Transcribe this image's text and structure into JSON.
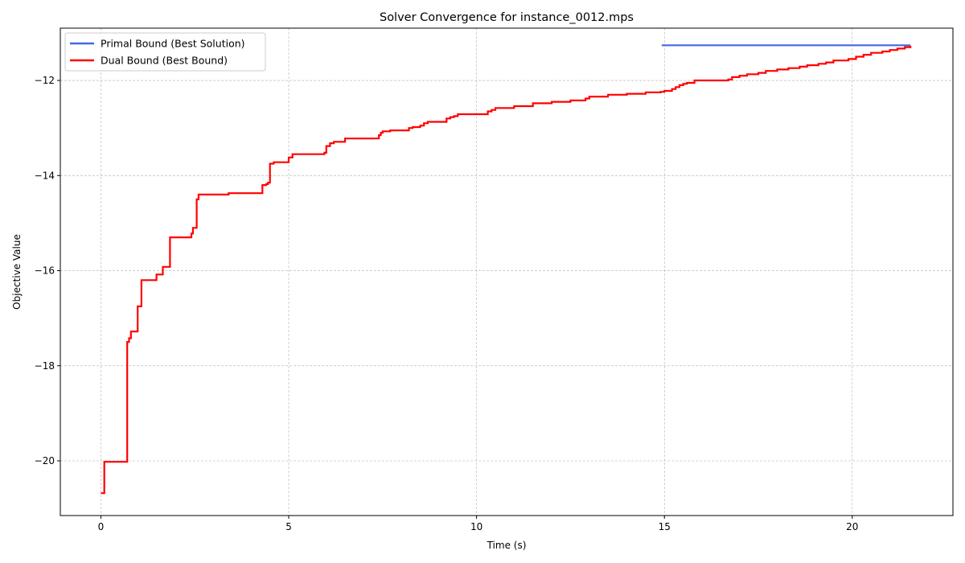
{
  "chart_data": {
    "type": "line",
    "title": "Solver Convergence for instance_0012.mps",
    "xlabel": "Time (s)",
    "ylabel": "Objective Value",
    "xlim": [
      -1.08,
      22.68
    ],
    "ylim": [
      -21.15,
      -10.9
    ],
    "xticks": [
      0,
      5,
      10,
      15,
      20
    ],
    "yticks": [
      -20,
      -18,
      -16,
      -14,
      -12
    ],
    "xtick_labels": [
      "0",
      "5",
      "10",
      "15",
      "20"
    ],
    "ytick_labels": [
      "−20",
      "−18",
      "−16",
      "−14",
      "−12"
    ],
    "grid": true,
    "legend_position": "upper-left",
    "series": [
      {
        "name": "Primal Bound (Best Solution)",
        "color": "#4169e1",
        "step": true,
        "x": [
          14.93,
          21.55
        ],
        "y": [
          -11.26,
          -11.26
        ]
      },
      {
        "name": "Dual Bound (Best Bound)",
        "color": "#ff0000",
        "step": true,
        "x": [
          0,
          0.09,
          0.7,
          0.75,
          0.8,
          0.98,
          1.08,
          1.48,
          1.65,
          1.84,
          2.41,
          2.45,
          2.55,
          2.6,
          2.65,
          3.4,
          3.5,
          4.3,
          4.4,
          4.45,
          4.5,
          4.6,
          5.0,
          5.1,
          5.9,
          5.95,
          6.0,
          6.1,
          6.2,
          6.5,
          7.4,
          7.45,
          7.5,
          7.7,
          8.2,
          8.3,
          8.5,
          8.6,
          8.7,
          9.2,
          9.3,
          9.4,
          9.5,
          10.3,
          10.4,
          10.5,
          11.0,
          11.5,
          12.0,
          12.5,
          12.9,
          13.0,
          13.5,
          14.0,
          14.5,
          14.9,
          15.0,
          15.2,
          15.3,
          15.4,
          15.5,
          15.6,
          15.8,
          16.7,
          16.8,
          17.0,
          17.2,
          17.5,
          17.7,
          18.0,
          18.3,
          18.6,
          18.8,
          19.1,
          19.3,
          19.5,
          19.9,
          20.1,
          20.3,
          20.5,
          20.8,
          21.0,
          21.2,
          21.4,
          21.55
        ],
        "y": [
          -20.68,
          -20.02,
          -17.5,
          -17.42,
          -17.28,
          -16.75,
          -16.2,
          -16.08,
          -15.92,
          -15.3,
          -15.22,
          -15.1,
          -14.5,
          -14.4,
          -14.4,
          -14.37,
          -14.37,
          -14.2,
          -14.18,
          -14.15,
          -13.75,
          -13.72,
          -13.62,
          -13.55,
          -13.55,
          -13.52,
          -13.38,
          -13.32,
          -13.29,
          -13.22,
          -13.15,
          -13.1,
          -13.07,
          -13.05,
          -13.0,
          -12.98,
          -12.95,
          -12.9,
          -12.87,
          -12.8,
          -12.77,
          -12.75,
          -12.71,
          -12.65,
          -12.62,
          -12.58,
          -12.54,
          -12.48,
          -12.45,
          -12.42,
          -12.38,
          -12.34,
          -12.3,
          -12.28,
          -12.25,
          -12.24,
          -12.22,
          -12.18,
          -12.14,
          -12.1,
          -12.07,
          -12.05,
          -12.0,
          -11.98,
          -11.93,
          -11.9,
          -11.87,
          -11.84,
          -11.8,
          -11.77,
          -11.74,
          -11.71,
          -11.68,
          -11.65,
          -11.62,
          -11.58,
          -11.55,
          -11.5,
          -11.46,
          -11.42,
          -11.39,
          -11.36,
          -11.33,
          -11.3,
          -11.27
        ]
      }
    ]
  }
}
